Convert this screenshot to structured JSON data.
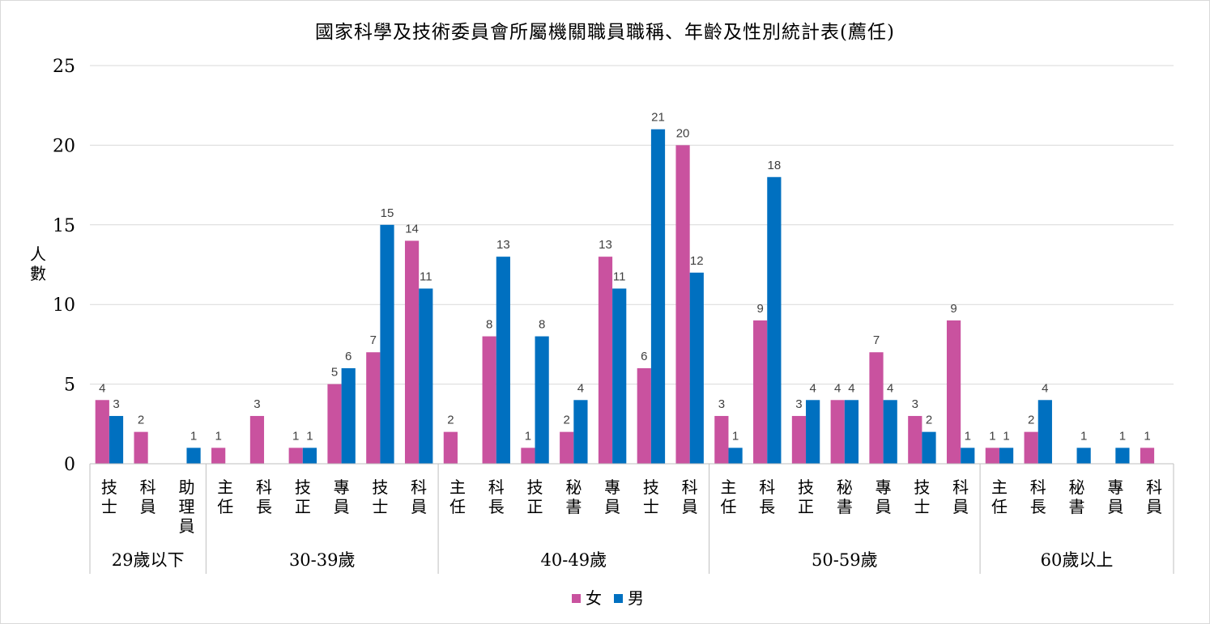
{
  "chart_data": {
    "type": "bar",
    "title": "國家科學及技術委員會所屬機關職員職稱、年齡及性別統計表(薦任)",
    "xlabel": "",
    "ylabel": "人數",
    "ylim": [
      0,
      25
    ],
    "yticks": [
      0,
      5,
      10,
      15,
      20,
      25
    ],
    "grid": true,
    "legend_position": "bottom",
    "colors": {
      "女": "#C9529F",
      "男": "#0070C0"
    },
    "groups": [
      {
        "name": "29歲以下",
        "categories": [
          "技士",
          "科員",
          "助理員"
        ]
      },
      {
        "name": "30-39歲",
        "categories": [
          "主任",
          "科長",
          "技正",
          "專員",
          "技士",
          "科員"
        ]
      },
      {
        "name": "40-49歲",
        "categories": [
          "主任",
          "科長",
          "技正",
          "秘書",
          "專員",
          "技士",
          "科員"
        ]
      },
      {
        "name": "50-59歲",
        "categories": [
          "主任",
          "科長",
          "技正",
          "秘書",
          "專員",
          "技士",
          "科員"
        ]
      },
      {
        "name": "60歲以上",
        "categories": [
          "主任",
          "科長",
          "秘書",
          "專員",
          "科員"
        ]
      }
    ],
    "series": [
      {
        "name": "女",
        "values": [
          4,
          2,
          null,
          1,
          3,
          1,
          5,
          7,
          14,
          2,
          8,
          1,
          2,
          13,
          6,
          20,
          3,
          9,
          3,
          4,
          7,
          3,
          9,
          1,
          2,
          null,
          null,
          1
        ]
      },
      {
        "name": "男",
        "values": [
          3,
          null,
          1,
          null,
          null,
          1,
          6,
          15,
          11,
          null,
          13,
          8,
          4,
          11,
          21,
          12,
          1,
          18,
          4,
          4,
          4,
          2,
          1,
          1,
          4,
          1,
          1,
          null
        ]
      }
    ]
  }
}
